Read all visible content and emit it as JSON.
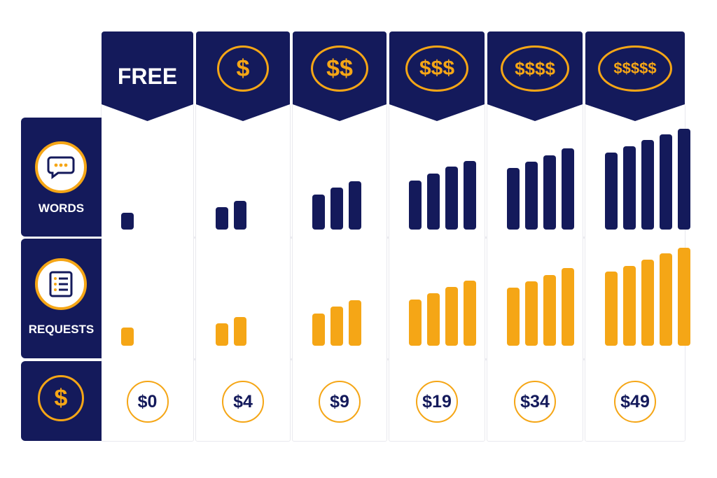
{
  "tiers": [
    {
      "label": "FREE",
      "symbol": "",
      "price": "$0",
      "words_level": 1,
      "requests_level": 1
    },
    {
      "label": "",
      "symbol": "$",
      "price": "$4",
      "words_level": 2,
      "requests_level": 2
    },
    {
      "label": "",
      "symbol": "$$",
      "price": "$9",
      "words_level": 3,
      "requests_level": 3
    },
    {
      "label": "",
      "symbol": "$$$",
      "price": "$19",
      "words_level": 4,
      "requests_level": 4
    },
    {
      "label": "",
      "symbol": "$$$$",
      "price": "$34",
      "words_level": 4,
      "requests_level": 4
    },
    {
      "label": "",
      "symbol": "$$$$$",
      "price": "$49",
      "words_level": 5,
      "requests_level": 5
    }
  ],
  "rows": {
    "words": {
      "label": "WORDS",
      "icon": "speech-bubble-icon"
    },
    "requests": {
      "label": "REQUESTS",
      "icon": "list-document-icon"
    },
    "price": {
      "icon": "dollar-coin-icon",
      "symbol": "$"
    }
  },
  "colors": {
    "navy": "#141a5b",
    "gold": "#f5a616",
    "grid": "#ececf0"
  }
}
